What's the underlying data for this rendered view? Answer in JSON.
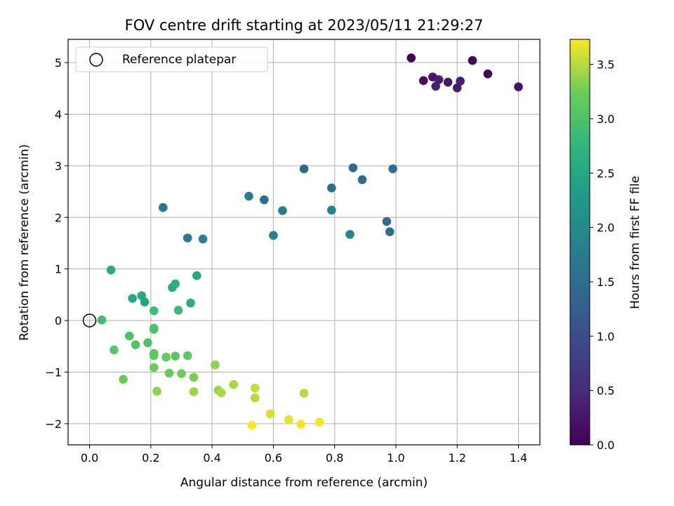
{
  "chart_data": {
    "type": "scatter",
    "title": "FOV centre drift starting at 2023/05/11 21:29:27",
    "xlabel": "Angular distance from reference (arcmin)",
    "ylabel": "Rotation from reference (arcmin)",
    "xlim": [
      -0.07,
      1.47
    ],
    "ylim": [
      -2.41,
      5.45
    ],
    "xticks": [
      "0.0",
      "0.2",
      "0.4",
      "0.6",
      "0.8",
      "1.0",
      "1.2",
      "1.4"
    ],
    "yticks": [
      "−2",
      "−1",
      "0",
      "1",
      "2",
      "3",
      "4",
      "5"
    ],
    "grid": true,
    "legend": {
      "position": "top-left",
      "entries": [
        "Reference platepar"
      ]
    },
    "reference_point": {
      "x": 0.0,
      "y": 0.0
    },
    "colorbar": {
      "label": "Hours from first FF file",
      "colormap": "viridis",
      "range": [
        0.0,
        3.73
      ],
      "ticks": [
        "0.0",
        "0.5",
        "1.0",
        "1.5",
        "2.0",
        "2.5",
        "3.0",
        "3.5"
      ]
    },
    "points": [
      {
        "x": 1.05,
        "y": 5.09,
        "c": 0.03
      },
      {
        "x": 1.09,
        "y": 4.65,
        "c": 0.15
      },
      {
        "x": 1.12,
        "y": 4.72,
        "c": 0.28
      },
      {
        "x": 1.14,
        "y": 4.67,
        "c": 0.33
      },
      {
        "x": 1.13,
        "y": 4.54,
        "c": 0.38
      },
      {
        "x": 1.17,
        "y": 4.62,
        "c": 0.25
      },
      {
        "x": 1.2,
        "y": 4.51,
        "c": 0.3
      },
      {
        "x": 1.21,
        "y": 4.64,
        "c": 0.35
      },
      {
        "x": 1.25,
        "y": 5.04,
        "c": 0.05
      },
      {
        "x": 1.3,
        "y": 4.78,
        "c": 0.1
      },
      {
        "x": 1.4,
        "y": 4.53,
        "c": 0.2
      },
      {
        "x": 0.7,
        "y": 2.94,
        "c": 1.4
      },
      {
        "x": 0.86,
        "y": 2.96,
        "c": 1.45
      },
      {
        "x": 0.99,
        "y": 2.94,
        "c": 1.5
      },
      {
        "x": 0.79,
        "y": 2.57,
        "c": 1.55
      },
      {
        "x": 0.89,
        "y": 2.73,
        "c": 1.42
      },
      {
        "x": 0.57,
        "y": 2.34,
        "c": 1.48
      },
      {
        "x": 0.52,
        "y": 2.41,
        "c": 1.75
      },
      {
        "x": 0.24,
        "y": 2.19,
        "c": 1.65
      },
      {
        "x": 0.63,
        "y": 2.13,
        "c": 1.8
      },
      {
        "x": 0.79,
        "y": 2.14,
        "c": 1.9
      },
      {
        "x": 0.97,
        "y": 1.92,
        "c": 1.5
      },
      {
        "x": 0.6,
        "y": 1.65,
        "c": 1.85
      },
      {
        "x": 0.85,
        "y": 1.67,
        "c": 1.95
      },
      {
        "x": 0.98,
        "y": 1.72,
        "c": 1.55
      },
      {
        "x": 0.32,
        "y": 1.6,
        "c": 1.7
      },
      {
        "x": 0.37,
        "y": 1.58,
        "c": 1.78
      },
      {
        "x": 0.07,
        "y": 0.98,
        "c": 2.6
      },
      {
        "x": 0.35,
        "y": 0.87,
        "c": 2.5
      },
      {
        "x": 0.27,
        "y": 0.64,
        "c": 2.6
      },
      {
        "x": 0.28,
        "y": 0.71,
        "c": 2.65
      },
      {
        "x": 0.14,
        "y": 0.43,
        "c": 2.5
      },
      {
        "x": 0.17,
        "y": 0.48,
        "c": 2.55
      },
      {
        "x": 0.18,
        "y": 0.36,
        "c": 2.45
      },
      {
        "x": 0.33,
        "y": 0.34,
        "c": 2.6
      },
      {
        "x": 0.21,
        "y": 0.19,
        "c": 2.9
      },
      {
        "x": 0.29,
        "y": 0.2,
        "c": 2.85
      },
      {
        "x": 0.04,
        "y": 0.01,
        "c": 2.9
      },
      {
        "x": 0.21,
        "y": -0.15,
        "c": 2.95
      },
      {
        "x": 0.21,
        "y": -0.17,
        "c": 3.0
      },
      {
        "x": 0.13,
        "y": -0.3,
        "c": 3.0
      },
      {
        "x": 0.15,
        "y": -0.47,
        "c": 3.05
      },
      {
        "x": 0.19,
        "y": -0.43,
        "c": 3.0
      },
      {
        "x": 0.08,
        "y": -0.57,
        "c": 3.1
      },
      {
        "x": 0.21,
        "y": -0.64,
        "c": 3.1
      },
      {
        "x": 0.21,
        "y": -0.68,
        "c": 3.15
      },
      {
        "x": 0.25,
        "y": -0.71,
        "c": 3.2
      },
      {
        "x": 0.28,
        "y": -0.69,
        "c": 3.1
      },
      {
        "x": 0.32,
        "y": -0.68,
        "c": 3.15
      },
      {
        "x": 0.21,
        "y": -0.91,
        "c": 3.25
      },
      {
        "x": 0.26,
        "y": -1.02,
        "c": 3.2
      },
      {
        "x": 0.3,
        "y": -1.03,
        "c": 3.25
      },
      {
        "x": 0.34,
        "y": -1.1,
        "c": 3.3
      },
      {
        "x": 0.41,
        "y": -0.86,
        "c": 3.35
      },
      {
        "x": 0.11,
        "y": -1.14,
        "c": 3.2
      },
      {
        "x": 0.22,
        "y": -1.37,
        "c": 3.35
      },
      {
        "x": 0.34,
        "y": -1.38,
        "c": 3.4
      },
      {
        "x": 0.42,
        "y": -1.35,
        "c": 3.4
      },
      {
        "x": 0.43,
        "y": -1.4,
        "c": 3.45
      },
      {
        "x": 0.47,
        "y": -1.24,
        "c": 3.45
      },
      {
        "x": 0.54,
        "y": -1.31,
        "c": 3.55
      },
      {
        "x": 0.54,
        "y": -1.5,
        "c": 3.5
      },
      {
        "x": 0.7,
        "y": -1.41,
        "c": 3.5
      },
      {
        "x": 0.59,
        "y": -1.81,
        "c": 3.6
      },
      {
        "x": 0.65,
        "y": -1.92,
        "c": 3.65
      },
      {
        "x": 0.69,
        "y": -2.01,
        "c": 3.7
      },
      {
        "x": 0.75,
        "y": -1.97,
        "c": 3.7
      },
      {
        "x": 0.53,
        "y": -2.03,
        "c": 3.73
      }
    ]
  }
}
